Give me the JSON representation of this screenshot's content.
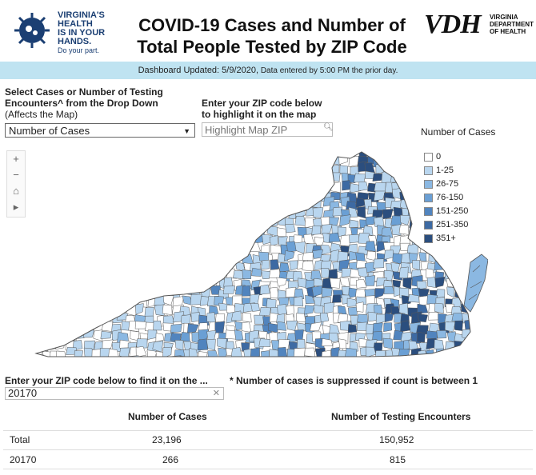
{
  "header": {
    "logo_left_lines": [
      "VIRGINIA'S",
      "HEALTH",
      "IS IN YOUR",
      "HANDS."
    ],
    "logo_left_tagline": "Do your part.",
    "title_line1": "COVID-19 Cases and Number of",
    "title_line2": "Total People Tested by ZIP Code",
    "vdh_mark": "VDH",
    "vdh_text": [
      "VIRGINIA",
      "DEPARTMENT",
      "OF HEALTH"
    ]
  },
  "banner": {
    "updated": "Dashboard Updated: 5/9/2020,",
    "note": "Data entered by 5:00 PM the prior day."
  },
  "controls": {
    "dropdown_label_line1": "Select Cases or Number of Testing",
    "dropdown_label_line2": "Encounters^ from the Drop Down",
    "dropdown_label_sub": "(Affects the Map)",
    "dropdown_value": "Number of Cases",
    "zip_label_line1": "Enter your ZIP code below",
    "zip_label_line2": "to highlight it on the map",
    "zip_placeholder": "Highlight Map ZIP"
  },
  "map_tools": {
    "zoom_in": "+",
    "zoom_out": "−",
    "home": "⌂",
    "expand": "▸"
  },
  "legend": {
    "title": "Number of Cases",
    "items": [
      {
        "label": "0",
        "color": "#ffffff"
      },
      {
        "label": "1-25",
        "color": "#b9d6ef"
      },
      {
        "label": "26-75",
        "color": "#8bb8e2"
      },
      {
        "label": "76-150",
        "color": "#6a9fd4"
      },
      {
        "label": "151-250",
        "color": "#5184be"
      },
      {
        "label": "251-350",
        "color": "#3d6aa3"
      },
      {
        "label": "351+",
        "color": "#2b4e7e"
      }
    ]
  },
  "find": {
    "label": "Enter your ZIP code below to find it on the ...",
    "value": "20170",
    "note": "* Number of cases is suppressed if count is between 1"
  },
  "table": {
    "headers": [
      "Number of Cases",
      "Number of Testing Encounters"
    ],
    "rows": [
      {
        "label": "Total",
        "cases": "23,196",
        "tests": "150,952"
      },
      {
        "label": "20170",
        "cases": "266",
        "tests": "815"
      }
    ]
  }
}
